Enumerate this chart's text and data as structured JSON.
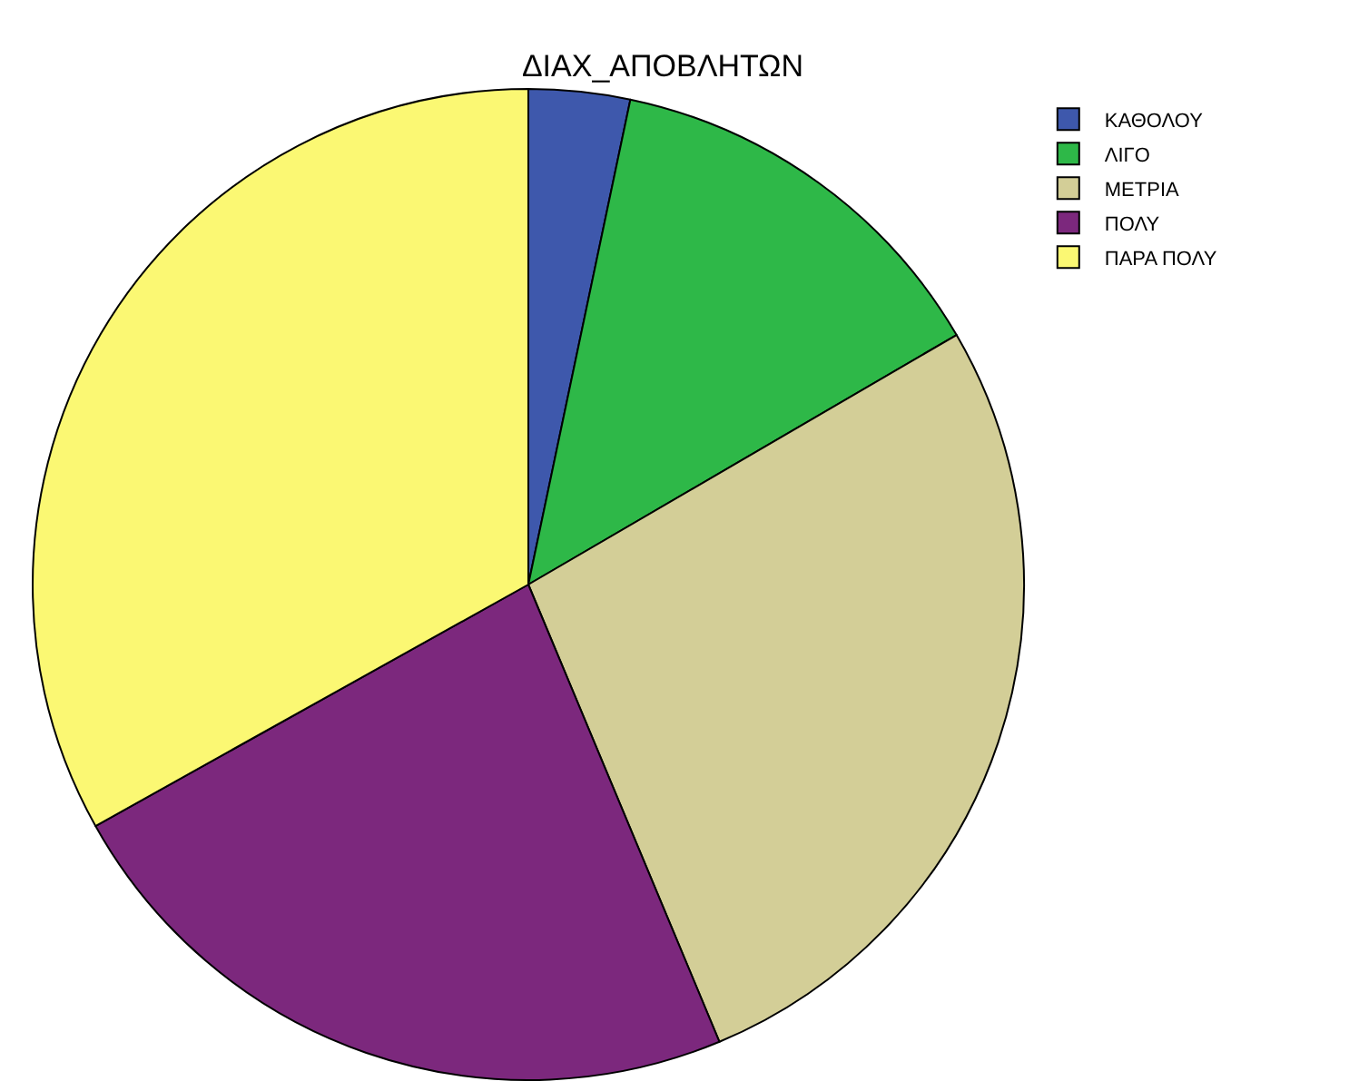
{
  "chart_data": {
    "type": "pie",
    "title": "ΔΙΑΧ_ΑΠΟΒΛΗΤΩΝ",
    "categories": [
      "ΚΑΘΟΛΟΥ",
      "ΛΙΓΟ",
      "ΜΕΤΡΙΑ",
      "ΠΟΛΥ",
      "ΠΑΡΑ ΠΟΛΥ"
    ],
    "values": [
      3.3,
      13.3,
      27.1,
      23.2,
      33.1
    ],
    "colors": [
      "#3e58ac",
      "#2eb848",
      "#d3ce97",
      "#7c287d",
      "#fbf873"
    ],
    "legend": "top right"
  }
}
